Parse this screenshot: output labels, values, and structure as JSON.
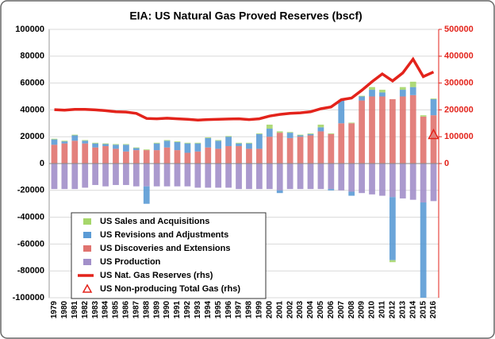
{
  "chart_data": {
    "type": "bar",
    "title": "EIA: US Natural Gas Proved Reserves (bscf)",
    "categories": [
      "1979",
      "1980",
      "1981",
      "1982",
      "1983",
      "1984",
      "1985",
      "1986",
      "1987",
      "1988",
      "1989",
      "1990",
      "1991",
      "1992",
      "1993",
      "1994",
      "1995",
      "1996",
      "1997",
      "1998",
      "1999",
      "2000",
      "2001",
      "2002",
      "2003",
      "2004",
      "2005",
      "2006",
      "2007",
      "2008",
      "2009",
      "2010",
      "2011",
      "2012",
      "2013",
      "2014",
      "2015",
      "2016"
    ],
    "series": [
      {
        "name": "US Sales and Acquisitions",
        "type": "bar",
        "color": "#a6d66a",
        "values": [
          500,
          500,
          500,
          500,
          500,
          500,
          500,
          500,
          500,
          500,
          500,
          500,
          500,
          500,
          500,
          500,
          500,
          500,
          500,
          500,
          500,
          3000,
          1000,
          500,
          500,
          500,
          2000,
          500,
          500,
          500,
          500,
          2000,
          2000,
          -1500,
          2000,
          4000,
          1000,
          500
        ]
      },
      {
        "name": "US Revisions and Adjustments",
        "type": "bar",
        "color": "#5b9bd5",
        "values": [
          4000,
          1500,
          4000,
          2000,
          3000,
          1500,
          3000,
          5000,
          1500,
          -13000,
          5000,
          5000,
          6000,
          7000,
          6000,
          7000,
          6000,
          7000,
          2000,
          4000,
          11000,
          6000,
          -2000,
          4000,
          1000,
          1000,
          3000,
          -1000,
          17000,
          -3000,
          3000,
          5000,
          3000,
          -47000,
          5000,
          6000,
          -71000,
          12000
        ]
      },
      {
        "name": "US Discoveries and Extensions",
        "type": "bar",
        "color": "#e0736f",
        "values": [
          14000,
          15000,
          17000,
          15000,
          12000,
          13000,
          11000,
          9000,
          10000,
          10000,
          10000,
          12000,
          10000,
          8000,
          9000,
          12000,
          11000,
          13000,
          13000,
          11000,
          11000,
          20000,
          23000,
          19000,
          20000,
          21000,
          24000,
          22000,
          30000,
          30000,
          47000,
          50000,
          50000,
          48000,
          50000,
          51000,
          35000,
          36000
        ]
      },
      {
        "name": "US Production",
        "type": "bar",
        "color": "#a28fc9",
        "values": [
          -19000,
          -19000,
          -19000,
          -18000,
          -16000,
          -17000,
          -16000,
          -16000,
          -17000,
          -17000,
          -17000,
          -17000,
          -17000,
          -17000,
          -18000,
          -18000,
          -18000,
          -18000,
          -19000,
          -19000,
          -19000,
          -19000,
          -20000,
          -19000,
          -19000,
          -19000,
          -19000,
          -19000,
          -20000,
          -21000,
          -22000,
          -23000,
          -24000,
          -25000,
          -26000,
          -27000,
          -29000,
          -28000
        ]
      },
      {
        "name": "US Nat. Gas Reserves (rhs)",
        "type": "line",
        "axis": "y2",
        "color": "#e3231b",
        "values": [
          201000,
          199000,
          202000,
          202000,
          200000,
          197000,
          193000,
          192000,
          187000,
          168000,
          167000,
          169000,
          167000,
          165000,
          162000,
          164000,
          165000,
          166000,
          167000,
          164000,
          167000,
          177000,
          183000,
          187000,
          189000,
          193000,
          204000,
          211000,
          238000,
          244000,
          273000,
          305000,
          334000,
          308000,
          338000,
          389000,
          324000,
          341000
        ]
      },
      {
        "name": "US Non-producing Total Gas (rhs)",
        "type": "marker",
        "axis": "y2",
        "color": "#e3231b",
        "values": [
          null,
          null,
          null,
          null,
          null,
          null,
          null,
          null,
          null,
          null,
          null,
          null,
          null,
          null,
          null,
          null,
          null,
          null,
          null,
          null,
          null,
          null,
          null,
          null,
          null,
          null,
          null,
          null,
          null,
          null,
          null,
          null,
          null,
          null,
          null,
          null,
          null,
          108000
        ]
      }
    ],
    "ylim": [
      -100000,
      100000
    ],
    "yticks": [
      -100000,
      -80000,
      -60000,
      -40000,
      -20000,
      0,
      20000,
      40000,
      60000,
      80000,
      100000
    ],
    "y2lim": [
      -500000,
      500000
    ],
    "y2ticks": [
      0,
      100000,
      200000,
      300000,
      400000,
      500000
    ],
    "y2_color": "#e3231b",
    "grid": true,
    "legend": "lower left"
  }
}
